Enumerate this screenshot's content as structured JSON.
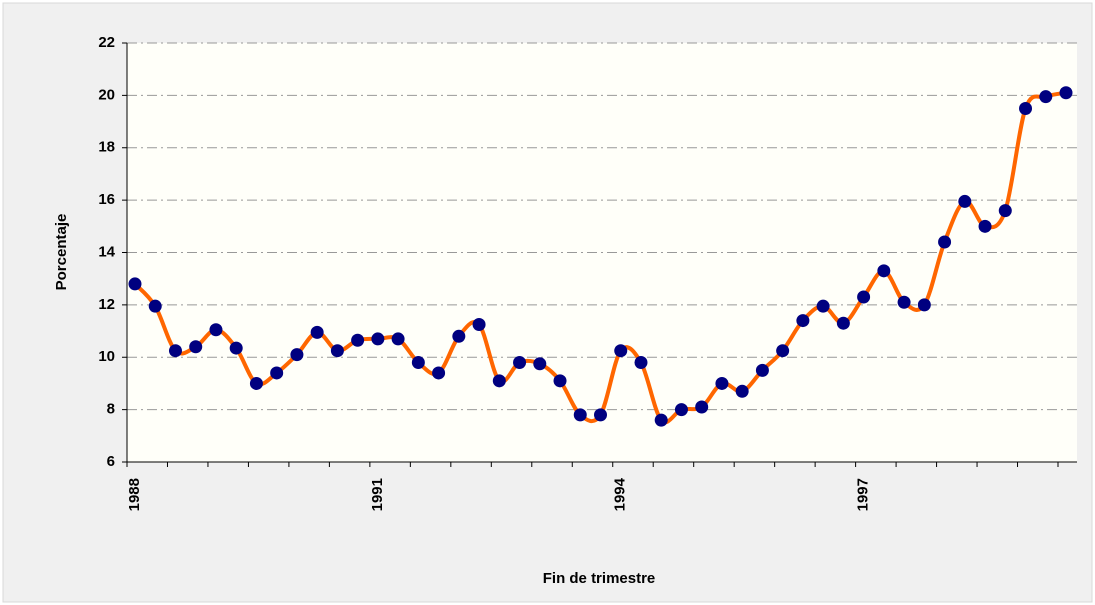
{
  "chart_data": {
    "type": "line",
    "x_label": "Fin de trimestre",
    "y_label": "Porcentaje",
    "categories": [
      "1988",
      null,
      null,
      null,
      null,
      null,
      null,
      null,
      null,
      null,
      null,
      null,
      "1991",
      null,
      null,
      null,
      null,
      null,
      null,
      null,
      null,
      null,
      null,
      null,
      "1994",
      null,
      null,
      null,
      null,
      null,
      null,
      null,
      null,
      null,
      null,
      null,
      "1997",
      null,
      null,
      null,
      null,
      null,
      null,
      null,
      null,
      null,
      null
    ],
    "series": [
      {
        "line_color": "#ff6600",
        "marker_color": "#000080",
        "values": [
          12.8,
          11.95,
          10.25,
          10.4,
          11.05,
          10.35,
          9.0,
          9.4,
          10.1,
          10.95,
          10.25,
          10.65,
          10.7,
          10.7,
          9.8,
          9.4,
          10.8,
          11.25,
          9.1,
          9.8,
          9.75,
          9.1,
          7.8,
          7.8,
          10.25,
          9.8,
          7.6,
          8.0,
          8.1,
          9.0,
          8.7,
          9.5,
          10.25,
          11.4,
          11.95,
          11.3,
          12.3,
          13.3,
          12.1,
          12.0,
          14.4,
          15.95,
          15.0,
          15.6,
          19.5,
          19.95,
          20.1
        ]
      }
    ],
    "ylim": [
      6,
      22
    ],
    "yticks": [
      6,
      8,
      10,
      12,
      14,
      16,
      18,
      20,
      22
    ],
    "grid": true
  }
}
